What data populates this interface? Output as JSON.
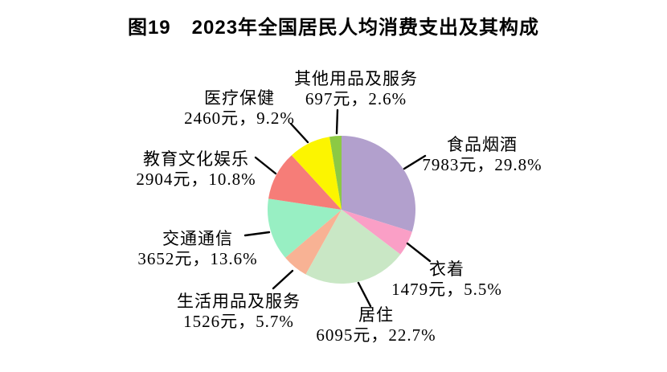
{
  "title": {
    "figure_no": "图19",
    "text": "2023年全国居民人均消费支出及其构成"
  },
  "chart_data": {
    "type": "pie",
    "title": "图19　2023年全国居民人均消费支出及其构成",
    "unit": "元",
    "start_angle": "12-oclock",
    "direction": "clockwise",
    "legend_position": "none",
    "slices": [
      {
        "key": "food-tobacco-alcohol",
        "label": "食品烟酒",
        "value_yuan": 7983,
        "percent": 29.8,
        "value_label": "7983元，29.8%",
        "color": "#b2a0cd"
      },
      {
        "key": "clothing",
        "label": "衣着",
        "value_yuan": 1479,
        "percent": 5.5,
        "value_label": "1479元，5.5%",
        "color": "#fa9fc6"
      },
      {
        "key": "housing",
        "label": "居住",
        "value_yuan": 6095,
        "percent": 22.7,
        "value_label": "6095元，22.7%",
        "color": "#c9e7c5"
      },
      {
        "key": "household-goods-services",
        "label": "生活用品及服务",
        "value_yuan": 1526,
        "percent": 5.7,
        "value_label": "1526元，5.7%",
        "color": "#f8b294"
      },
      {
        "key": "transport-communication",
        "label": "交通通信",
        "value_yuan": 3652,
        "percent": 13.6,
        "value_label": "3652元，13.6%",
        "color": "#98efc3"
      },
      {
        "key": "education-culture-entertainment",
        "label": "教育文化娱乐",
        "value_yuan": 2904,
        "percent": 10.8,
        "value_label": "2904元，10.8%",
        "color": "#f67d78"
      },
      {
        "key": "healthcare",
        "label": "医疗保健",
        "value_yuan": 2460,
        "percent": 9.2,
        "value_label": "2460元，9.2%",
        "color": "#fcf500"
      },
      {
        "key": "other-goods-services",
        "label": "其他用品及服务",
        "value_yuan": 697,
        "percent": 2.6,
        "value_label": "697元，2.6%",
        "color": "#8cc944"
      }
    ]
  }
}
